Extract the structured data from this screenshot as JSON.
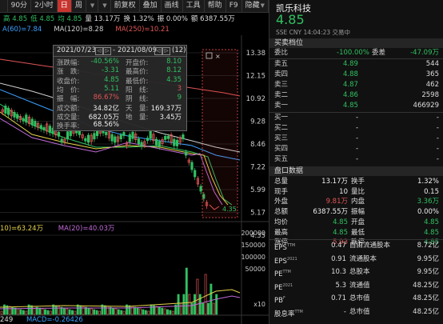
{
  "toolbar": {
    "items": [
      {
        "label": "",
        "dd": false,
        "active": false
      },
      {
        "label": "90分",
        "dd": false,
        "active": false
      },
      {
        "label": "2小时",
        "dd": false,
        "active": false
      },
      {
        "label": "日",
        "dd": false,
        "active": true
      },
      {
        "label": "周",
        "dd": false,
        "active": false
      },
      {
        "label": "",
        "dd": true,
        "active": false
      },
      {
        "label": "",
        "dd": true,
        "active": false
      },
      {
        "label": "前复权",
        "dd": false,
        "active": false
      },
      {
        "label": "叠加",
        "dd": false,
        "active": false
      },
      {
        "label": "画线",
        "dd": false,
        "active": false
      },
      {
        "label": "工具",
        "dd": false,
        "active": false
      },
      {
        "label": "帮助",
        "dd": false,
        "active": false
      },
      {
        "label": "F9",
        "dd": false,
        "active": false
      },
      {
        "label": "隐藏",
        "dd": true,
        "active": false
      }
    ]
  },
  "info": [
    {
      "text": "高 4.85",
      "color": "#30c060"
    },
    {
      "text": "低 4.85",
      "color": "#30c060"
    },
    {
      "text": "均 4.85",
      "color": "#30c060"
    },
    {
      "text": "量 13.17万",
      "color": "#dddddd"
    },
    {
      "text": "换 1.32%",
      "color": "#dddddd"
    },
    {
      "text": "振 0.00%",
      "color": "#dddddd"
    },
    {
      "text": "额 6387.55万",
      "color": "#dddddd"
    }
  ],
  "ma": [
    {
      "text": "A(60)=7.84",
      "color": "#3aa0ff"
    },
    {
      "text": "MA(120)=8.28",
      "color": "#d0d0d0"
    },
    {
      "text": "MA(250)=10.21",
      "color": "#e05555"
    }
  ],
  "tooltip": {
    "date_start": "2021/07/23",
    "date_end": "2021/08/09",
    "count": "(12)",
    "rows": [
      {
        "l1": "涨跌幅:",
        "v1": "-40.56%",
        "c1": "#30c060",
        "l2": "开盘价:",
        "v2": "8.10",
        "c2": "#30c060"
      },
      {
        "l1": "涨　跌:",
        "v1": "-3.31",
        "c1": "#30c060",
        "l2": "最高价:",
        "v2": "8.12",
        "c2": "#30c060"
      },
      {
        "l1": "收盘价:",
        "v1": "4.85",
        "c1": "#30c060",
        "l2": "最低价:",
        "v2": "4.35",
        "c2": "#30c060"
      },
      {
        "l1": "均　价:",
        "v1": "5.11",
        "c1": "#30c060",
        "l2": "阳　线:",
        "v2": "3",
        "c2": "#e05555"
      },
      {
        "l1": "振　幅:",
        "v1": "86.67%",
        "c1": "#e05555",
        "l2": "阴　线:",
        "v2": "9",
        "c2": "#30c060"
      },
      {
        "l1": "成交额:",
        "v1": "34.82亿",
        "c1": "#eeeeee",
        "l2": "天　量:",
        "v2": "169.37万",
        "c2": "#eeeeee"
      },
      {
        "l1": "成交量:",
        "v1": "682.05万",
        "c1": "#eeeeee",
        "l2": "地　量:",
        "v2": "3.45万",
        "c2": "#eeeeee"
      },
      {
        "l1": "换手率:",
        "v1": "68.56%",
        "c1": "#eeeeee",
        "l2": "",
        "v2": "",
        "c2": "#eeeeee"
      }
    ]
  },
  "price_axis": [
    "13.38",
    "12.15",
    "10.92",
    "9.28",
    "8.46",
    "7.22",
    "5.99",
    "5.17",
    "4.35"
  ],
  "low_label": "4.35",
  "vol_axis": [
    "200000",
    "150000",
    "100000",
    "50000",
    "x10"
  ],
  "vol_ma": [
    {
      "text": "10)=63.24万",
      "color": "#e6d24a"
    },
    {
      "text": "MA(20)=40.03万",
      "color": "#c06ad8"
    }
  ],
  "macd": [
    {
      "text": "249",
      "color": "#dddddd"
    },
    {
      "text": "MACD=-0.26426",
      "color": "#3aa0ff"
    }
  ],
  "right": {
    "name": "凯乐科技",
    "price": "4.85",
    "sub": "SSE  CNY   14:04:23  交易中",
    "orderbook_title": "买卖档位",
    "ratio_label": "委比",
    "ratio_value": "-100.00%",
    "diff_label": "委差",
    "diff_value": "-47.09万",
    "sells": [
      {
        "label": "卖五",
        "price": "4.89",
        "vol": "544"
      },
      {
        "label": "卖四",
        "price": "4.88",
        "vol": "365"
      },
      {
        "label": "卖三",
        "price": "4.87",
        "vol": "462"
      },
      {
        "label": "卖二",
        "price": "4.86",
        "vol": "2598"
      },
      {
        "label": "卖一",
        "price": "4.85",
        "vol": "466929"
      }
    ],
    "buys": [
      {
        "label": "买一",
        "price": "-",
        "vol": "-"
      },
      {
        "label": "买二",
        "price": "-",
        "vol": "-"
      },
      {
        "label": "买三",
        "price": "-",
        "vol": "-"
      },
      {
        "label": "买四",
        "price": "-",
        "vol": "-"
      },
      {
        "label": "买五",
        "price": "-",
        "vol": "-"
      }
    ],
    "quote_title": "盘口数据",
    "quotes": [
      {
        "l1": "总量",
        "v1": "13.17万",
        "c1": "#eeeeee",
        "l2": "换手",
        "v2": "1.32%",
        "c2": "#eeeeee"
      },
      {
        "l1": "现手",
        "v1": "10",
        "c1": "#eeeeee",
        "l2": "量比",
        "v2": "0.15",
        "c2": "#eeeeee"
      },
      {
        "l1": "外盘",
        "v1": "9.81万",
        "c1": "#e05555",
        "l2": "内盘",
        "v2": "3.36万",
        "c2": "#30c060"
      },
      {
        "l1": "总额",
        "v1": "6387.55万",
        "c1": "#eeeeee",
        "l2": "振幅",
        "v2": "0.00%",
        "c2": "#eeeeee"
      },
      {
        "l1": "均价",
        "v1": "4.85",
        "c1": "#30c060",
        "l2": "开盘",
        "v2": "4.85",
        "c2": "#30c060"
      },
      {
        "l1": "最高",
        "v1": "4.85",
        "c1": "#30c060",
        "l2": "最低",
        "v2": "4.85",
        "c2": "#30c060"
      },
      {
        "l1": "涨停",
        "v1": "5.93",
        "c1": "#e05555",
        "l2": "跌停",
        "v2": "4.85",
        "c2": "#30c060"
      }
    ],
    "fin": [
      {
        "l1": "EPS",
        "s1": "TTM",
        "v1": "0.47",
        "l2": "自由流通股本",
        "v2": "8.72亿"
      },
      {
        "l1": "EPS",
        "s1": "2021",
        "v1": "0.91",
        "l2": "流通股本",
        "v2": "9.95亿"
      },
      {
        "l1": "PE",
        "s1": "TTM",
        "v1": "10.3",
        "l2": "总股本",
        "v2": "9.95亿"
      },
      {
        "l1": "PE",
        "s1": "2021",
        "v1": "5.3",
        "l2": "流通值",
        "v2": "48.25亿"
      },
      {
        "l1": "PB",
        "s1": "F",
        "v1": "0.71",
        "l2": "总市值",
        "v2": "48.25亿"
      },
      {
        "l1": "股息率",
        "s1": "TTM",
        "v1": "-",
        "l2": "总市值",
        "v2": "48.25亿"
      }
    ]
  }
}
